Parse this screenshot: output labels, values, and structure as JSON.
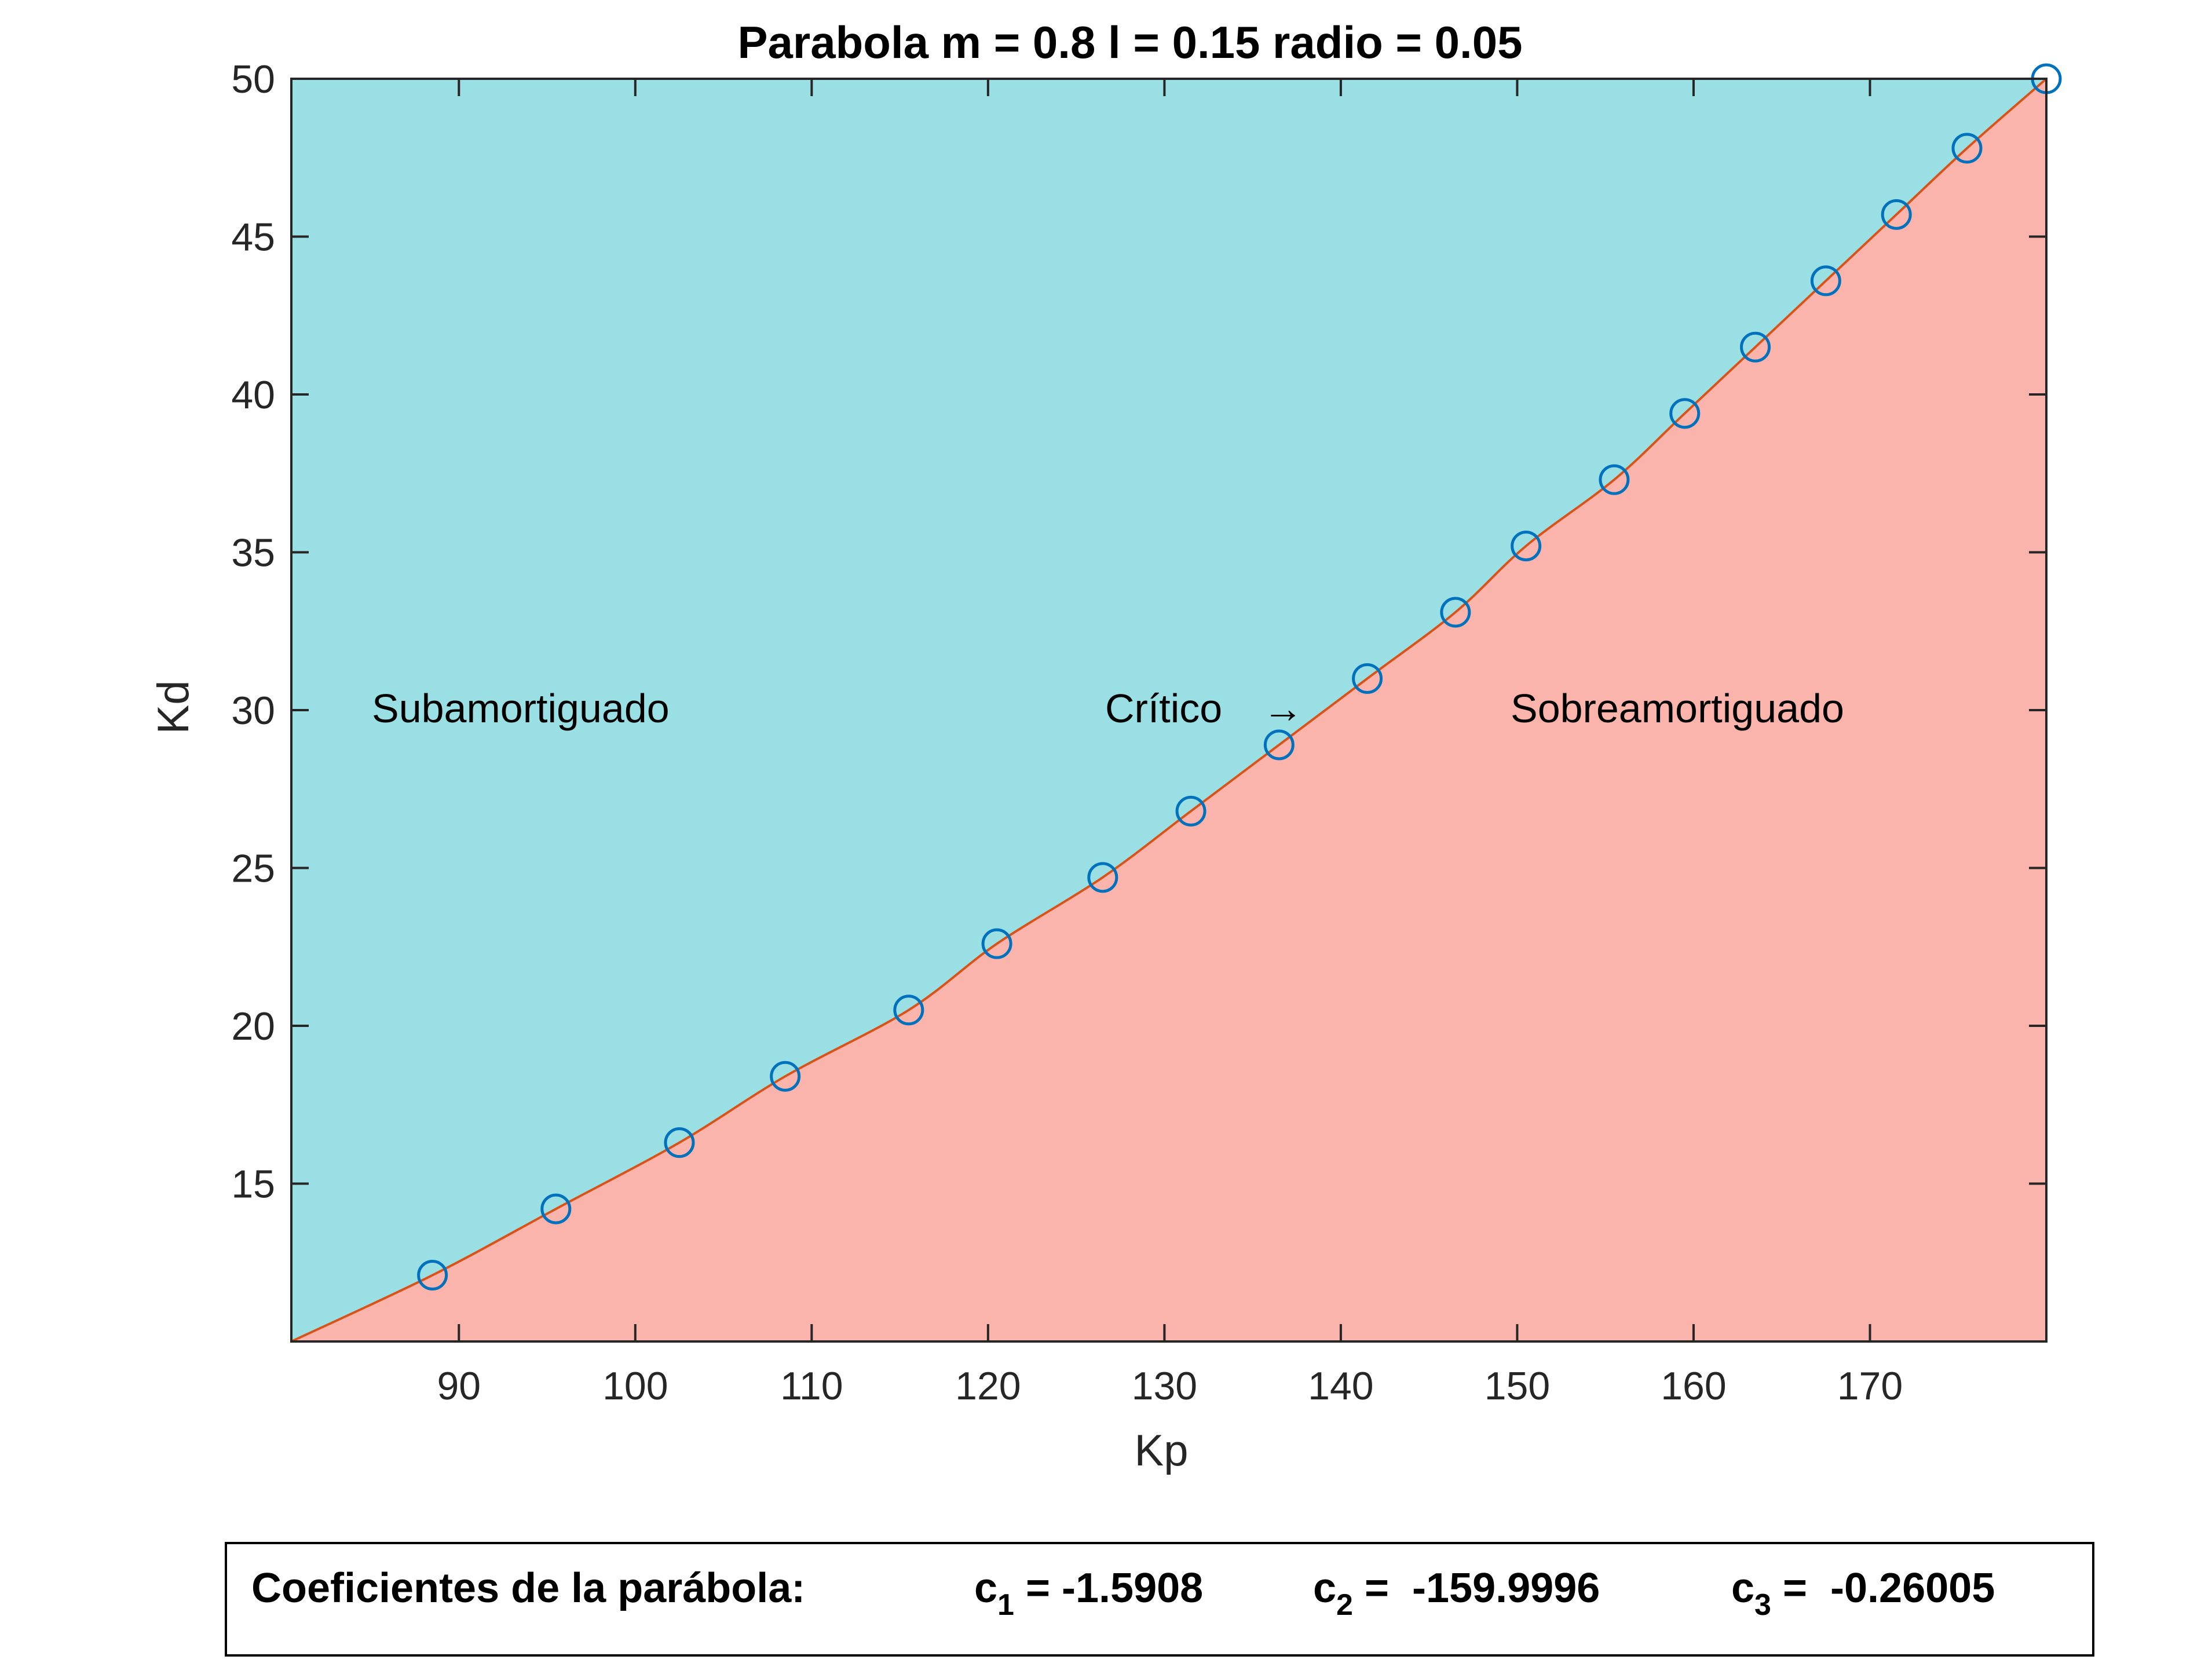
{
  "chart_data": {
    "type": "line",
    "title": "Parabola m = 0.8 l = 0.15 radio = 0.05",
    "xlabel": "Kp",
    "ylabel": "Kd",
    "xlim": [
      80.5,
      180
    ],
    "ylim": [
      10,
      50
    ],
    "xticks": [
      90,
      100,
      110,
      120,
      130,
      140,
      150,
      160,
      170
    ],
    "yticks": [
      15,
      20,
      25,
      30,
      35,
      40,
      45,
      50
    ],
    "grid": false,
    "colors": {
      "upper_region": "#9ADFE3",
      "lower_region": "#FBB4AB",
      "curve": "#D95319",
      "markers": "#0072BD"
    },
    "regions": {
      "upper": "Subamortiguado",
      "boundary": "Crítico",
      "lower": "Sobreamortiguado"
    },
    "curve_samples": {
      "x": [
        80.5,
        88.5,
        95.5,
        102.5,
        108.5,
        115.5,
        120.5,
        126.5,
        131.5,
        136.5,
        141.5,
        146.5,
        150.5,
        155.5,
        159.5,
        163.5,
        167.5,
        171.5,
        175.5,
        180
      ],
      "y": [
        10,
        12.1,
        14.2,
        16.3,
        18.4,
        20.5,
        22.6,
        24.7,
        26.8,
        28.9,
        31.0,
        33.1,
        35.2,
        37.3,
        39.4,
        41.5,
        43.6,
        45.7,
        47.8,
        50
      ]
    },
    "series": [
      {
        "marker": "circle",
        "x": [
          88.5,
          95.5,
          102.5,
          108.5,
          115.5,
          120.5,
          126.5,
          131.5,
          136.5,
          141.5,
          146.5,
          150.5,
          155.5,
          159.5,
          163.5,
          167.5,
          171.5,
          175.5,
          180
        ],
        "y": [
          12.1,
          14.2,
          16.3,
          18.4,
          20.5,
          22.6,
          24.7,
          26.8,
          28.9,
          31.0,
          33.1,
          35.2,
          37.3,
          39.4,
          41.5,
          43.6,
          45.7,
          47.8,
          50
        ]
      }
    ]
  },
  "coefficients": {
    "label": "Coeficientes de la parábola:",
    "c1_name": "c",
    "c1_sub": "1",
    "c1_value": " = -1.5908",
    "c2_name": "c",
    "c2_sub": "2",
    "c2_value": " =  -159.9996",
    "c3_name": "c",
    "c3_sub": "3",
    "c3_value": " =  -0.26005"
  }
}
